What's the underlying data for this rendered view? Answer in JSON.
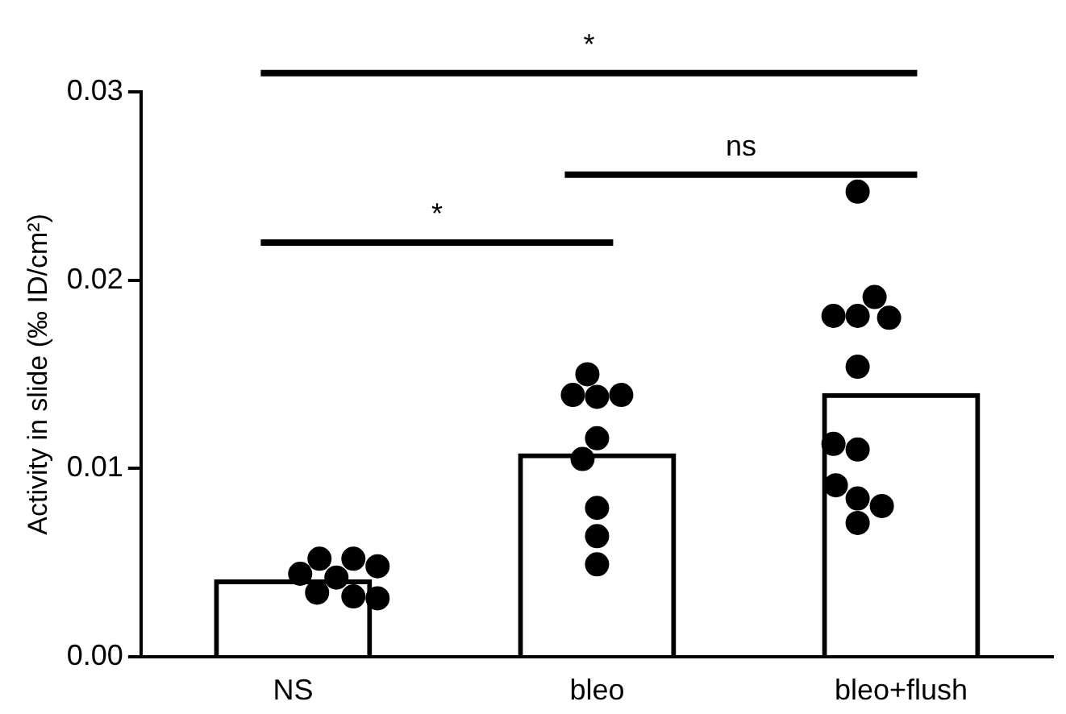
{
  "chart_data": {
    "type": "bar",
    "ylabel": "Activity in slide (‰ ID/cm²)",
    "categories": [
      "NS",
      "bleo",
      "bleo+flush"
    ],
    "series": [
      {
        "type": "bar",
        "color": "#000000",
        "values": [
          0.0041,
          0.0108,
          0.014
        ]
      },
      {
        "type": "scatter",
        "color": "#000000",
        "marker": "circle",
        "x": [
          "NS",
          "NS",
          "NS",
          "NS",
          "NS",
          "NS",
          "NS",
          "NS",
          "bleo",
          "bleo",
          "bleo",
          "bleo",
          "bleo",
          "bleo",
          "bleo",
          "bleo",
          "bleo",
          "bleo+flush",
          "bleo+flush",
          "bleo+flush",
          "bleo+flush",
          "bleo+flush",
          "bleo+flush",
          "bleo+flush",
          "bleo+flush",
          "bleo+flush",
          "bleo+flush",
          "bleo+flush",
          "bleo+flush"
        ],
        "values": [
          0.0042,
          0.0034,
          0.0052,
          0.0052,
          0.0044,
          0.0048,
          0.0032,
          0.0031,
          0.0138,
          0.015,
          0.0139,
          0.0139,
          0.0116,
          0.0105,
          0.0079,
          0.0064,
          0.0049,
          0.0247,
          0.0181,
          0.0181,
          0.0191,
          0.018,
          0.0154,
          0.011,
          0.0113,
          0.0084,
          0.0091,
          0.008,
          0.0071
        ]
      }
    ],
    "ylim": [
      0,
      0.03
    ],
    "yticks": [
      {
        "value": 0,
        "label": "0.00"
      },
      {
        "value": 0.01,
        "label": "0.01"
      },
      {
        "value": 0.02,
        "label": "0.02"
      },
      {
        "value": 0.03,
        "label": "0.03"
      }
    ],
    "grid": false,
    "legend": false,
    "annotations": [
      "*",
      "ns",
      "*"
    ]
  }
}
